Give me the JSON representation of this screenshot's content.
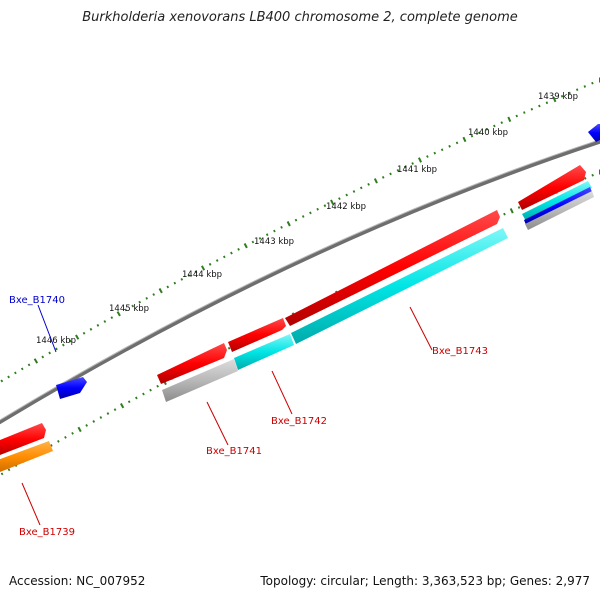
{
  "title": "Burkholderia xenovorans LB400 chromosome 2, complete genome",
  "footer": {
    "accession": "Accession: NC_007952",
    "summary": "Topology: circular; Length: 3,363,523 bp; Genes: 2,977"
  },
  "ticks": [
    {
      "label": "1439 kbp"
    },
    {
      "label": "1440 kbp"
    },
    {
      "label": "1441 kbp"
    },
    {
      "label": "1442 kbp"
    },
    {
      "label": "1443 kbp"
    },
    {
      "label": "1444 kbp"
    },
    {
      "label": "1445 kbp"
    },
    {
      "label": "1446 kbp"
    }
  ],
  "genes": [
    {
      "name": "Bxe_B1743",
      "color": "#cc0000"
    },
    {
      "name": "Bxe_B1742",
      "color": "#cc0000"
    },
    {
      "name": "Bxe_B1741",
      "color": "#cc0000"
    },
    {
      "name": "Bxe_B1740",
      "color": "#0000cc"
    },
    {
      "name": "Bxe_B1739",
      "color": "#cc0000"
    }
  ],
  "colors": {
    "backbone": "#7f7f7f",
    "tick": "#2e7d1e",
    "cds_forward": "#ff0000",
    "cds_reverse": "#0000ff",
    "gene_cyan": "#00e5e5",
    "gene_grey": "#b0b0b0",
    "gene_orange": "#ff8c00"
  }
}
